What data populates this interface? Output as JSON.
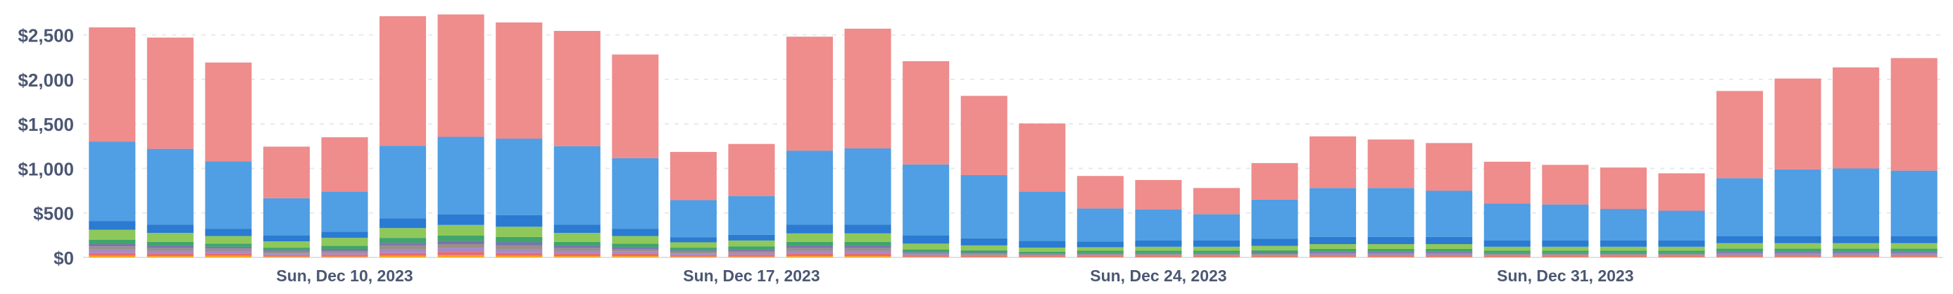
{
  "chart_data": {
    "type": "bar",
    "stacked": true,
    "grid": true,
    "legend": "none",
    "ylim": [
      0,
      2750
    ],
    "y_ticks": [
      0,
      500,
      1000,
      1500,
      2000,
      2500
    ],
    "y_tick_labels": [
      "$0",
      "$500",
      "$1,000",
      "$1,500",
      "$2,000",
      "$2,500"
    ],
    "x_tick_labels": [
      {
        "label": "Sun, Dec 10, 2023",
        "index": 4
      },
      {
        "label": "Sun, Dec 17, 2023",
        "index": 11
      },
      {
        "label": "Sun, Dec 24, 2023",
        "index": 18
      },
      {
        "label": "Sun, Dec 31, 2023",
        "index": 25
      }
    ],
    "categories": [
      "2023-12-06",
      "2023-12-07",
      "2023-12-08",
      "2023-12-09",
      "2023-12-10",
      "2023-12-11",
      "2023-12-12",
      "2023-12-13",
      "2023-12-14",
      "2023-12-15",
      "2023-12-16",
      "2023-12-17",
      "2023-12-18",
      "2023-12-19",
      "2023-12-20",
      "2023-12-21",
      "2023-12-22",
      "2023-12-23",
      "2023-12-24",
      "2023-12-25",
      "2023-12-26",
      "2023-12-27",
      "2023-12-28",
      "2023-12-29",
      "2023-12-30",
      "2023-12-31",
      "2024-01-01",
      "2024-01-02",
      "2024-01-03",
      "2024-01-04",
      "2024-01-05",
      "2024-01-06"
    ],
    "colors": [
      "#f5a623",
      "#e86b6b",
      "#a989c5",
      "#9a8f86",
      "#7b72b2",
      "#3fa56b",
      "#8fc85a",
      "#2a7bd1",
      "#509ee3",
      "#ef8c8c"
    ],
    "series": [
      {
        "values": [
          20,
          15,
          20,
          10,
          10,
          20,
          25,
          20,
          15,
          15,
          10,
          10,
          15,
          15,
          5,
          5,
          5,
          5,
          5,
          5,
          5,
          5,
          5,
          5,
          5,
          5,
          5,
          5,
          5,
          5,
          5,
          5
        ]
      },
      {
        "values": [
          30,
          25,
          25,
          15,
          20,
          30,
          35,
          30,
          25,
          25,
          15,
          20,
          25,
          25,
          10,
          10,
          10,
          10,
          10,
          10,
          10,
          10,
          10,
          10,
          10,
          10,
          10,
          10,
          10,
          10,
          10,
          10
        ]
      },
      {
        "values": [
          40,
          35,
          30,
          20,
          25,
          45,
          50,
          45,
          35,
          30,
          20,
          25,
          35,
          35,
          20,
          15,
          10,
          15,
          15,
          15,
          15,
          20,
          20,
          20,
          15,
          15,
          15,
          15,
          20,
          20,
          20,
          20
        ]
      },
      {
        "values": [
          35,
          30,
          25,
          20,
          20,
          40,
          40,
          40,
          30,
          25,
          20,
          20,
          30,
          30,
          15,
          15,
          10,
          10,
          10,
          10,
          10,
          15,
          15,
          15,
          10,
          10,
          10,
          10,
          15,
          15,
          15,
          15
        ]
      },
      {
        "values": [
          25,
          25,
          20,
          15,
          20,
          30,
          35,
          35,
          25,
          20,
          15,
          15,
          25,
          25,
          10,
          10,
          10,
          10,
          10,
          10,
          15,
          15,
          15,
          15,
          10,
          10,
          10,
          10,
          15,
          15,
          15,
          15
        ]
      },
      {
        "values": [
          50,
          45,
          35,
          30,
          35,
          55,
          60,
          60,
          45,
          40,
          30,
          35,
          45,
          45,
          30,
          25,
          20,
          25,
          25,
          25,
          25,
          30,
          30,
          30,
          25,
          25,
          25,
          25,
          35,
          35,
          35,
          35
        ]
      },
      {
        "values": [
          110,
          100,
          85,
          70,
          90,
          110,
          120,
          115,
          100,
          85,
          60,
          65,
          95,
          95,
          65,
          55,
          45,
          40,
          45,
          45,
          50,
          55,
          55,
          55,
          45,
          45,
          45,
          45,
          60,
          60,
          60,
          60
        ]
      },
      {
        "values": [
          100,
          95,
          80,
          65,
          70,
          110,
          120,
          130,
          95,
          80,
          55,
          65,
          100,
          100,
          90,
          80,
          75,
          65,
          70,
          70,
          80,
          80,
          80,
          80,
          70,
          70,
          70,
          70,
          80,
          80,
          80,
          80
        ]
      },
      {
        "values": [
          890,
          850,
          760,
          420,
          450,
          815,
          870,
          860,
          880,
          795,
          420,
          435,
          830,
          855,
          800,
          710,
          555,
          370,
          350,
          295,
          440,
          550,
          550,
          520,
          415,
          405,
          355,
          335,
          650,
          750,
          760,
          735
        ]
      },
      {
        "values": [
          1285,
          1250,
          1110,
          580,
          610,
          1455,
          1375,
          1305,
          1295,
          1165,
          540,
          585,
          1280,
          1345,
          1160,
          890,
          765,
          365,
          330,
          295,
          410,
          580,
          545,
          535,
          470,
          445,
          465,
          420,
          980,
          1020,
          1135,
          1265
        ]
      }
    ]
  }
}
